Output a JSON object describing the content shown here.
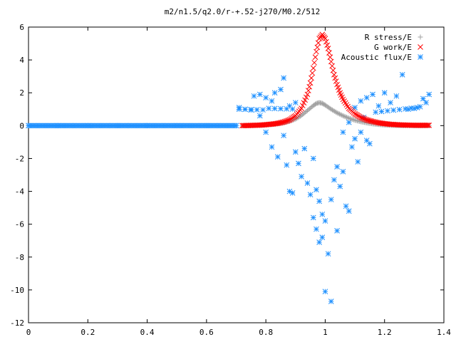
{
  "chart_data": {
    "type": "scatter",
    "title": "m2/n1.5/q2.0/r-+.52-j270/M0.2/512",
    "xlabel": "",
    "ylabel": "",
    "xlim": [
      0,
      1.4
    ],
    "ylim": [
      -12,
      6
    ],
    "xticks": [
      "0",
      "0.2",
      "0.4",
      "0.6",
      "0.8",
      "1",
      "1.2",
      "1.4"
    ],
    "yticks": [
      "6",
      "4",
      "2",
      "0",
      "-2",
      "-4",
      "-6",
      "-8",
      "-10",
      "-12"
    ],
    "grid": false,
    "legend_position": "top-right",
    "series": [
      {
        "name": "R stress/E",
        "marker": "plus",
        "color": "#a0a0a0",
        "points": [
          [
            0.72,
            0.0
          ],
          [
            0.74,
            0.0
          ],
          [
            0.76,
            0.01
          ],
          [
            0.78,
            0.02
          ],
          [
            0.8,
            0.04
          ],
          [
            0.82,
            0.07
          ],
          [
            0.84,
            0.11
          ],
          [
            0.86,
            0.17
          ],
          [
            0.88,
            0.26
          ],
          [
            0.9,
            0.4
          ],
          [
            0.92,
            0.62
          ],
          [
            0.94,
            0.92
          ],
          [
            0.96,
            1.22
          ],
          [
            0.97,
            1.35
          ],
          [
            0.98,
            1.4
          ],
          [
            0.99,
            1.36
          ],
          [
            1.0,
            1.25
          ],
          [
            1.02,
            1.0
          ],
          [
            1.04,
            0.78
          ],
          [
            1.06,
            0.6
          ],
          [
            1.08,
            0.45
          ],
          [
            1.1,
            0.33
          ],
          [
            1.12,
            0.24
          ],
          [
            1.14,
            0.17
          ],
          [
            1.16,
            0.11
          ],
          [
            1.18,
            0.07
          ],
          [
            1.2,
            0.04
          ],
          [
            1.22,
            0.02
          ],
          [
            1.24,
            0.01
          ],
          [
            1.26,
            0.0
          ],
          [
            1.3,
            0.0
          ],
          [
            1.35,
            0.0
          ]
        ]
      },
      {
        "name": "G work/E",
        "marker": "cross",
        "color": "#ff0000",
        "points": [
          [
            0.72,
            0.0
          ],
          [
            0.74,
            0.01
          ],
          [
            0.76,
            0.02
          ],
          [
            0.78,
            0.03
          ],
          [
            0.8,
            0.06
          ],
          [
            0.82,
            0.09
          ],
          [
            0.84,
            0.14
          ],
          [
            0.86,
            0.22
          ],
          [
            0.88,
            0.35
          ],
          [
            0.9,
            0.6
          ],
          [
            0.92,
            1.05
          ],
          [
            0.94,
            1.9
          ],
          [
            0.95,
            2.6
          ],
          [
            0.96,
            3.5
          ],
          [
            0.97,
            4.5
          ],
          [
            0.98,
            5.3
          ],
          [
            0.99,
            5.55
          ],
          [
            1.0,
            5.3
          ],
          [
            1.01,
            4.7
          ],
          [
            1.02,
            3.9
          ],
          [
            1.03,
            3.1
          ],
          [
            1.04,
            2.5
          ],
          [
            1.05,
            2.0
          ],
          [
            1.06,
            1.6
          ],
          [
            1.08,
            1.05
          ],
          [
            1.1,
            0.72
          ],
          [
            1.12,
            0.5
          ],
          [
            1.14,
            0.35
          ],
          [
            1.16,
            0.25
          ],
          [
            1.18,
            0.17
          ],
          [
            1.2,
            0.12
          ],
          [
            1.22,
            0.08
          ],
          [
            1.25,
            0.05
          ],
          [
            1.28,
            0.03
          ],
          [
            1.31,
            0.02
          ],
          [
            1.35,
            0.02
          ]
        ]
      },
      {
        "name": "Acoustic flux/E",
        "marker": "star",
        "color": "#1e90ff",
        "points": [
          [
            0.0,
            0.0
          ],
          [
            0.1,
            0.0
          ],
          [
            0.2,
            0.0
          ],
          [
            0.3,
            0.0
          ],
          [
            0.4,
            0.0
          ],
          [
            0.5,
            0.0
          ],
          [
            0.6,
            0.0
          ],
          [
            0.7,
            0.0
          ],
          [
            0.71,
            1.1
          ],
          [
            0.73,
            1.0
          ],
          [
            0.75,
            0.95
          ],
          [
            0.76,
            1.8
          ],
          [
            0.78,
            1.9
          ],
          [
            0.8,
            1.7
          ],
          [
            0.82,
            1.5
          ],
          [
            0.83,
            2.0
          ],
          [
            0.85,
            2.2
          ],
          [
            0.86,
            2.9
          ],
          [
            0.88,
            1.2
          ],
          [
            0.9,
            1.4
          ],
          [
            0.78,
            0.6
          ],
          [
            0.8,
            -0.4
          ],
          [
            0.82,
            -1.3
          ],
          [
            0.84,
            -1.9
          ],
          [
            0.86,
            -0.6
          ],
          [
            0.87,
            -2.4
          ],
          [
            0.88,
            -4.0
          ],
          [
            0.89,
            -4.1
          ],
          [
            0.9,
            -1.6
          ],
          [
            0.91,
            -2.3
          ],
          [
            0.92,
            -3.1
          ],
          [
            0.93,
            -1.4
          ],
          [
            0.94,
            -3.5
          ],
          [
            0.95,
            -4.2
          ],
          [
            0.96,
            -2.0
          ],
          [
            0.97,
            -3.9
          ],
          [
            0.98,
            -4.6
          ],
          [
            0.99,
            -5.4
          ],
          [
            0.96,
            -5.6
          ],
          [
            0.97,
            -6.3
          ],
          [
            0.98,
            -7.1
          ],
          [
            0.99,
            -6.8
          ],
          [
            1.0,
            -5.8
          ],
          [
            1.01,
            -7.8
          ],
          [
            1.02,
            -4.5
          ],
          [
            1.03,
            -3.3
          ],
          [
            1.04,
            -2.5
          ],
          [
            1.05,
            -3.7
          ],
          [
            1.06,
            -2.8
          ],
          [
            1.07,
            -4.9
          ],
          [
            1.08,
            -5.2
          ],
          [
            1.09,
            -1.3
          ],
          [
            1.1,
            -0.8
          ],
          [
            1.11,
            -2.2
          ],
          [
            1.12,
            -0.4
          ],
          [
            1.13,
            0.5
          ],
          [
            1.14,
            -0.9
          ],
          [
            1.15,
            -1.1
          ],
          [
            1.0,
            -10.1
          ],
          [
            1.02,
            -10.7
          ],
          [
            1.04,
            -6.4
          ],
          [
            1.06,
            -0.4
          ],
          [
            1.08,
            0.2
          ],
          [
            1.1,
            1.1
          ],
          [
            1.12,
            1.5
          ],
          [
            1.14,
            1.7
          ],
          [
            1.16,
            1.9
          ],
          [
            1.18,
            1.2
          ],
          [
            1.2,
            2.0
          ],
          [
            1.22,
            1.4
          ],
          [
            1.24,
            1.8
          ],
          [
            1.26,
            3.1
          ],
          [
            1.28,
            1.0
          ],
          [
            1.3,
            1.05
          ],
          [
            1.32,
            1.15
          ],
          [
            1.34,
            1.4
          ],
          [
            1.35,
            1.9
          ]
        ]
      }
    ]
  }
}
